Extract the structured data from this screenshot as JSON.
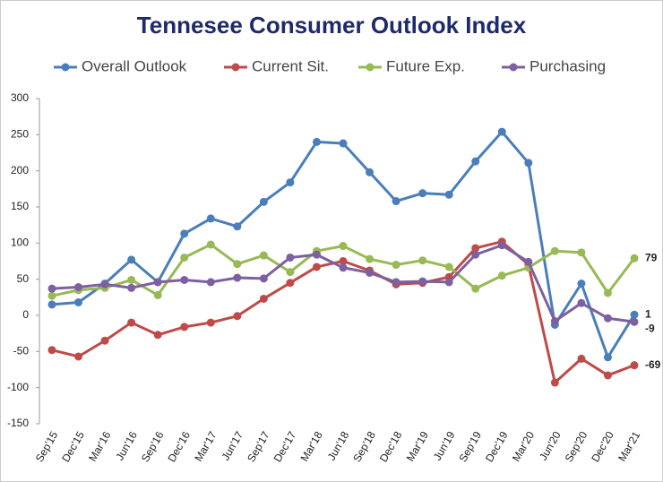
{
  "chart_data": {
    "type": "line",
    "title": "Tennesee Consumer Outlook Index",
    "categories": [
      "Sep'15",
      "Dec'15",
      "Mar'16",
      "Jun'16",
      "Sep'16",
      "Dec'16",
      "Mar'17",
      "Jun'17",
      "Sep'17",
      "Dec'17",
      "Mar'18",
      "Jun'18",
      "Sep'18",
      "Dec'18",
      "Mar'19",
      "Jun'19",
      "Sep'19",
      "Dec'19",
      "Mar'20",
      "Jun'20",
      "Sep'20",
      "Dec'20",
      "Mar'21"
    ],
    "series": [
      {
        "name": "Overall Outlook",
        "color": "#4a7ebb",
        "values": [
          15,
          18,
          44,
          77,
          46,
          113,
          134,
          123,
          157,
          184,
          240,
          238,
          198,
          158,
          169,
          167,
          213,
          254,
          211,
          -13,
          44,
          -58,
          1
        ]
      },
      {
        "name": "Current Sit.",
        "color": "#be4b48",
        "values": [
          -48,
          -57,
          -35,
          -10,
          -27,
          -16,
          -10,
          -1,
          23,
          45,
          67,
          75,
          62,
          43,
          45,
          53,
          93,
          102,
          70,
          -93,
          -60,
          -83,
          -69
        ]
      },
      {
        "name": "Future Exp.",
        "color": "#98b954",
        "values": [
          27,
          35,
          38,
          49,
          28,
          80,
          98,
          71,
          83,
          60,
          89,
          96,
          78,
          70,
          76,
          67,
          37,
          55,
          66,
          89,
          87,
          31,
          79
        ]
      },
      {
        "name": "Purchasing",
        "color": "#7d60a0",
        "values": [
          37,
          39,
          43,
          38,
          46,
          49,
          46,
          52,
          51,
          80,
          84,
          66,
          59,
          46,
          47,
          46,
          84,
          97,
          74,
          -8,
          17,
          -4,
          -9
        ]
      }
    ],
    "ylim": [
      -150,
      300
    ],
    "yticks": [
      -150,
      -100,
      -50,
      0,
      50,
      100,
      150,
      200,
      250,
      300
    ],
    "grid": false
  }
}
